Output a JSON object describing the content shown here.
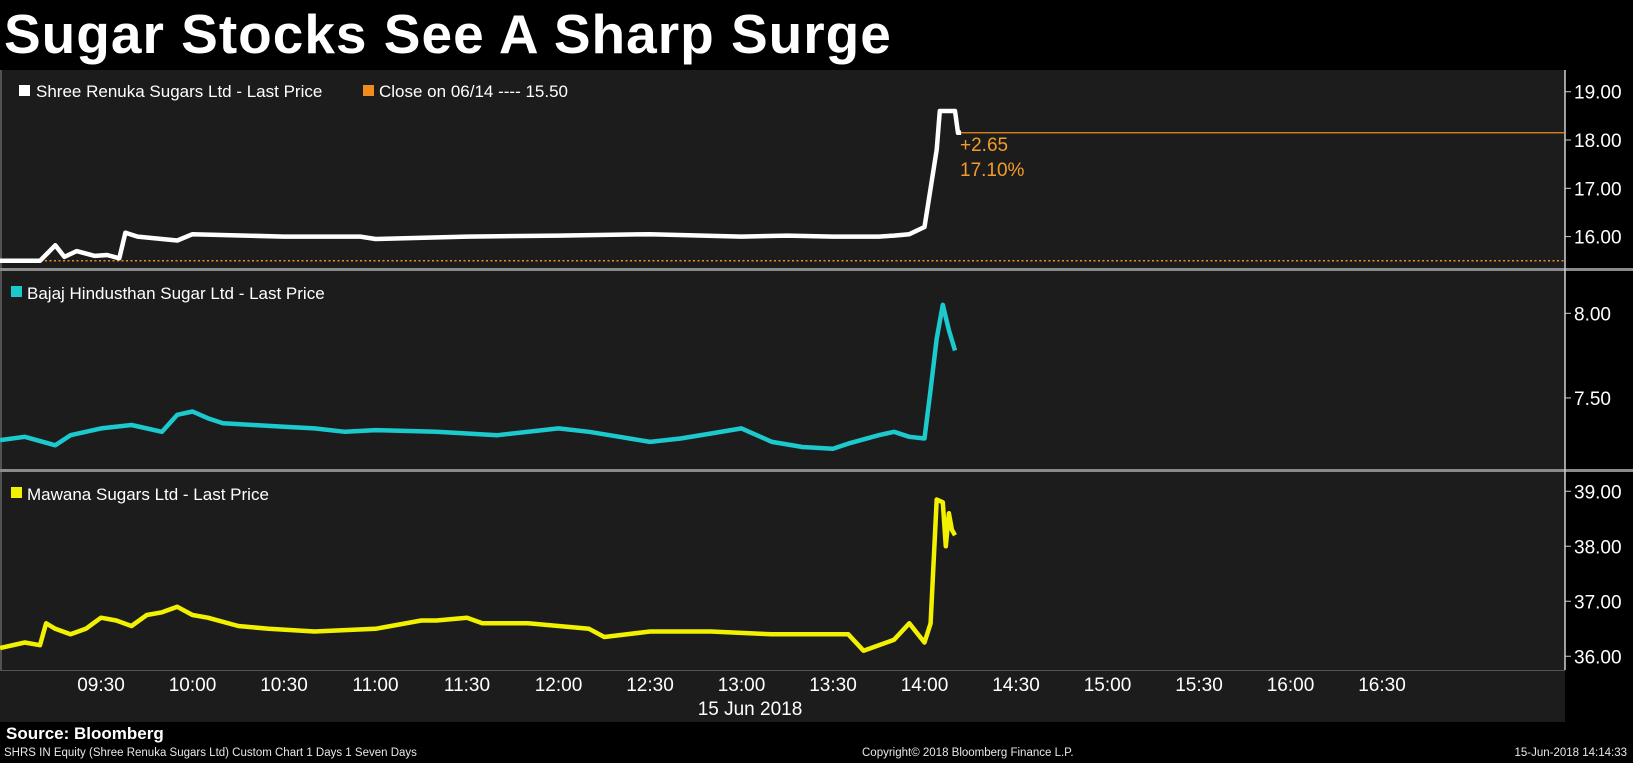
{
  "title": "Sugar Stocks See A Sharp Surge",
  "source": "Source: Bloomberg",
  "footer": {
    "left": "SHRS IN Equity (Shree Renuka Sugars Ltd) Custom Chart 1 Days 1 Seven Days",
    "center": "Copyright© 2018 Bloomberg Finance L.P.",
    "right": "15-Jun-2018 14:14:33"
  },
  "colors": {
    "renuka": "#ffffff",
    "bajaj": "#1cc9cc",
    "mawana": "#f2f200",
    "close": "#f08c1e",
    "panel": "#1c1c1c",
    "annotation": "#f39c2a"
  },
  "chart_data": [
    {
      "type": "line",
      "legend": [
        {
          "name": "Shree Renuka Sugars Ltd - Last Price",
          "color": "#ffffff"
        },
        {
          "name": "Close on 06/14 ---- 15.50",
          "color": "#f08c1e"
        }
      ],
      "ylim": [
        15.35,
        19.45
      ],
      "yticks": [
        "19.00",
        "18.00",
        "17.00",
        "16.00"
      ],
      "reference_line": {
        "label": "Close on 06/14",
        "value": 15.5
      },
      "last_value_line": 18.15,
      "annotation": {
        "change": "+2.65",
        "percent": "17.10%"
      },
      "series": [
        {
          "name": "Shree Renuka Sugars Ltd - Last Price",
          "x": [
            "09:00",
            "09:10",
            "09:15",
            "09:18",
            "09:22",
            "09:28",
            "09:32",
            "09:36",
            "09:38",
            "09:42",
            "09:55",
            "10:00",
            "10:30",
            "10:55",
            "11:00",
            "11:30",
            "12:00",
            "12:30",
            "13:00",
            "13:15",
            "13:30",
            "13:45",
            "13:50",
            "13:55",
            "14:00",
            "14:02",
            "14:04",
            "14:05",
            "14:06",
            "14:10",
            "14:11",
            "14:12"
          ],
          "y": [
            15.5,
            15.5,
            15.82,
            15.58,
            15.7,
            15.6,
            15.62,
            15.55,
            16.08,
            16.0,
            15.92,
            16.05,
            16.0,
            16.0,
            15.95,
            16.0,
            16.02,
            16.05,
            16.0,
            16.02,
            16.0,
            16.0,
            16.02,
            16.05,
            16.2,
            17.0,
            17.8,
            18.6,
            18.6,
            18.6,
            18.15,
            18.15
          ]
        }
      ]
    },
    {
      "type": "line",
      "legend": [
        {
          "name": "Bajaj Hindusthan Sugar Ltd - Last Price",
          "color": "#1cc9cc"
        }
      ],
      "ylim": [
        7.08,
        8.25
      ],
      "yticks": [
        "8.00",
        "7.50"
      ],
      "series": [
        {
          "name": "Bajaj Hindusthan Sugar Ltd - Last Price",
          "x": [
            "09:00",
            "09:05",
            "09:15",
            "09:20",
            "09:30",
            "09:40",
            "09:50",
            "09:55",
            "10:00",
            "10:05",
            "10:10",
            "10:20",
            "10:30",
            "10:40",
            "10:50",
            "11:00",
            "11:20",
            "11:40",
            "12:00",
            "12:10",
            "12:20",
            "12:30",
            "12:40",
            "12:50",
            "13:00",
            "13:10",
            "13:20",
            "13:30",
            "13:35",
            "13:45",
            "13:50",
            "13:55",
            "14:00",
            "14:02",
            "14:04",
            "14:06",
            "14:08",
            "14:10"
          ],
          "y": [
            7.25,
            7.27,
            7.22,
            7.28,
            7.32,
            7.34,
            7.3,
            7.4,
            7.42,
            7.38,
            7.35,
            7.34,
            7.33,
            7.32,
            7.3,
            7.31,
            7.3,
            7.28,
            7.32,
            7.3,
            7.27,
            7.24,
            7.26,
            7.29,
            7.32,
            7.24,
            7.21,
            7.2,
            7.23,
            7.28,
            7.3,
            7.27,
            7.26,
            7.55,
            7.85,
            8.05,
            7.9,
            7.78
          ]
        }
      ]
    },
    {
      "type": "line",
      "legend": [
        {
          "name": "Mawana Sugars Ltd - Last Price",
          "color": "#f2f200"
        }
      ],
      "ylim": [
        35.75,
        39.35
      ],
      "yticks": [
        "39.00",
        "38.00",
        "37.00",
        "36.00"
      ],
      "series": [
        {
          "name": "Mawana Sugars Ltd - Last Price",
          "x": [
            "09:00",
            "09:05",
            "09:10",
            "09:12",
            "09:15",
            "09:20",
            "09:25",
            "09:30",
            "09:35",
            "09:40",
            "09:45",
            "09:50",
            "09:55",
            "10:00",
            "10:05",
            "10:15",
            "10:25",
            "10:40",
            "11:00",
            "11:15",
            "11:20",
            "11:30",
            "11:35",
            "11:50",
            "12:00",
            "12:10",
            "12:15",
            "12:30",
            "12:50",
            "13:10",
            "13:20",
            "13:35",
            "13:40",
            "13:50",
            "13:55",
            "14:00",
            "14:02",
            "14:04",
            "14:06",
            "14:07",
            "14:08",
            "14:09",
            "14:10"
          ],
          "y": [
            36.15,
            36.25,
            36.2,
            36.6,
            36.5,
            36.4,
            36.5,
            36.7,
            36.65,
            36.55,
            36.75,
            36.8,
            36.9,
            36.75,
            36.7,
            36.55,
            36.5,
            36.45,
            36.5,
            36.65,
            36.65,
            36.7,
            36.6,
            36.6,
            36.55,
            36.5,
            36.35,
            36.45,
            36.45,
            36.4,
            36.4,
            36.4,
            36.1,
            36.3,
            36.6,
            36.25,
            36.6,
            38.85,
            38.8,
            38.0,
            38.6,
            38.3,
            38.2
          ]
        }
      ]
    }
  ],
  "xaxis": {
    "ticks": [
      "09:30",
      "10:00",
      "10:30",
      "11:00",
      "11:30",
      "12:00",
      "12:30",
      "13:00",
      "13:30",
      "14:00",
      "14:30",
      "15:00",
      "15:30",
      "16:00",
      "16:30"
    ],
    "date_label": "15 Jun 2018"
  }
}
